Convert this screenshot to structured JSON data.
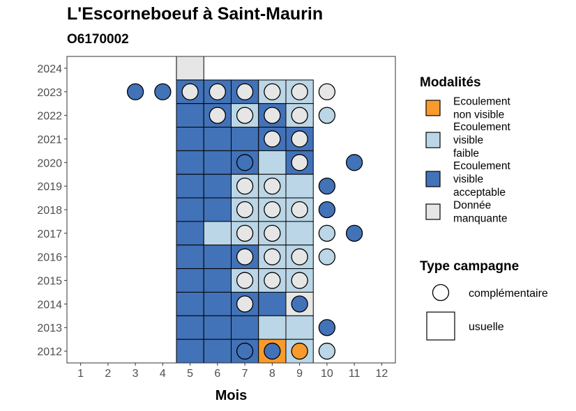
{
  "chart_data": {
    "type": "heatmap",
    "title": "L'Escorneboeuf à Saint-Maurin",
    "subtitle": "O6170002",
    "xlabel": "Mois",
    "ylabel": "",
    "x_ticks": [
      "1",
      "2",
      "3",
      "4",
      "5",
      "6",
      "7",
      "8",
      "9",
      "10",
      "11",
      "12"
    ],
    "y_ticks": [
      "2012",
      "2013",
      "2014",
      "2015",
      "2016",
      "2017",
      "2018",
      "2019",
      "2020",
      "2021",
      "2022",
      "2023",
      "2024"
    ],
    "xlim": [
      0.5,
      12.5
    ],
    "ylim": [
      2011.5,
      2024.5
    ],
    "grid": false,
    "legend_position": "right",
    "colors": {
      "nv": "#F99A2C",
      "vf": "#BBD6E6",
      "va": "#4272B8",
      "dm": "#E6E6E6"
    },
    "legend": {
      "modalites_title": "Modalités",
      "modalites": [
        {
          "key": "nv",
          "label_lines": [
            "Ecoulement",
            "non visible"
          ]
        },
        {
          "key": "vf",
          "label_lines": [
            "Ecoulement",
            "visible",
            "faible"
          ]
        },
        {
          "key": "va",
          "label_lines": [
            "Ecoulement",
            "visible",
            "acceptable"
          ]
        },
        {
          "key": "dm",
          "label_lines": [
            "Donnée",
            "manquante"
          ]
        }
      ],
      "type_title": "Type campagne",
      "types": [
        {
          "shape": "circle",
          "label": "complémentaire"
        },
        {
          "shape": "square",
          "label": "usuelle"
        }
      ]
    },
    "usuelle": [
      {
        "year": 2024,
        "month": 5,
        "m": "dm"
      },
      {
        "year": 2023,
        "month": 5,
        "m": "va"
      },
      {
        "year": 2023,
        "month": 6,
        "m": "va"
      },
      {
        "year": 2023,
        "month": 7,
        "m": "va"
      },
      {
        "year": 2023,
        "month": 8,
        "m": "vf"
      },
      {
        "year": 2023,
        "month": 9,
        "m": "vf"
      },
      {
        "year": 2022,
        "month": 5,
        "m": "va"
      },
      {
        "year": 2022,
        "month": 6,
        "m": "va"
      },
      {
        "year": 2022,
        "month": 7,
        "m": "vf"
      },
      {
        "year": 2022,
        "month": 8,
        "m": "va"
      },
      {
        "year": 2022,
        "month": 9,
        "m": "vf"
      },
      {
        "year": 2021,
        "month": 5,
        "m": "va"
      },
      {
        "year": 2021,
        "month": 6,
        "m": "va"
      },
      {
        "year": 2021,
        "month": 7,
        "m": "va"
      },
      {
        "year": 2021,
        "month": 8,
        "m": "va"
      },
      {
        "year": 2021,
        "month": 9,
        "m": "va"
      },
      {
        "year": 2020,
        "month": 5,
        "m": "va"
      },
      {
        "year": 2020,
        "month": 6,
        "m": "va"
      },
      {
        "year": 2020,
        "month": 7,
        "m": "va"
      },
      {
        "year": 2020,
        "month": 8,
        "m": "vf"
      },
      {
        "year": 2020,
        "month": 9,
        "m": "va"
      },
      {
        "year": 2019,
        "month": 5,
        "m": "va"
      },
      {
        "year": 2019,
        "month": 6,
        "m": "va"
      },
      {
        "year": 2019,
        "month": 7,
        "m": "vf"
      },
      {
        "year": 2019,
        "month": 8,
        "m": "vf"
      },
      {
        "year": 2019,
        "month": 9,
        "m": "vf"
      },
      {
        "year": 2018,
        "month": 5,
        "m": "va"
      },
      {
        "year": 2018,
        "month": 6,
        "m": "va"
      },
      {
        "year": 2018,
        "month": 7,
        "m": "vf"
      },
      {
        "year": 2018,
        "month": 8,
        "m": "vf"
      },
      {
        "year": 2018,
        "month": 9,
        "m": "vf"
      },
      {
        "year": 2017,
        "month": 5,
        "m": "va"
      },
      {
        "year": 2017,
        "month": 6,
        "m": "vf"
      },
      {
        "year": 2017,
        "month": 7,
        "m": "vf"
      },
      {
        "year": 2017,
        "month": 8,
        "m": "vf"
      },
      {
        "year": 2017,
        "month": 9,
        "m": "vf"
      },
      {
        "year": 2016,
        "month": 5,
        "m": "va"
      },
      {
        "year": 2016,
        "month": 6,
        "m": "va"
      },
      {
        "year": 2016,
        "month": 7,
        "m": "va"
      },
      {
        "year": 2016,
        "month": 8,
        "m": "vf"
      },
      {
        "year": 2016,
        "month": 9,
        "m": "vf"
      },
      {
        "year": 2015,
        "month": 5,
        "m": "va"
      },
      {
        "year": 2015,
        "month": 6,
        "m": "va"
      },
      {
        "year": 2015,
        "month": 7,
        "m": "vf"
      },
      {
        "year": 2015,
        "month": 8,
        "m": "vf"
      },
      {
        "year": 2015,
        "month": 9,
        "m": "vf"
      },
      {
        "year": 2014,
        "month": 5,
        "m": "va"
      },
      {
        "year": 2014,
        "month": 6,
        "m": "va"
      },
      {
        "year": 2014,
        "month": 7,
        "m": "va"
      },
      {
        "year": 2014,
        "month": 8,
        "m": "va"
      },
      {
        "year": 2014,
        "month": 9,
        "m": "dm"
      },
      {
        "year": 2013,
        "month": 5,
        "m": "va"
      },
      {
        "year": 2013,
        "month": 6,
        "m": "va"
      },
      {
        "year": 2013,
        "month": 7,
        "m": "va"
      },
      {
        "year": 2013,
        "month": 8,
        "m": "vf"
      },
      {
        "year": 2013,
        "month": 9,
        "m": "vf"
      },
      {
        "year": 2012,
        "month": 5,
        "m": "va"
      },
      {
        "year": 2012,
        "month": 6,
        "m": "va"
      },
      {
        "year": 2012,
        "month": 7,
        "m": "va"
      },
      {
        "year": 2012,
        "month": 8,
        "m": "nv"
      },
      {
        "year": 2012,
        "month": 9,
        "m": "vf"
      }
    ],
    "complementaire": [
      {
        "year": 2023,
        "month": 3,
        "m": "va"
      },
      {
        "year": 2023,
        "month": 4,
        "m": "va"
      },
      {
        "year": 2023,
        "month": 5,
        "m": "dm"
      },
      {
        "year": 2023,
        "month": 6,
        "m": "dm"
      },
      {
        "year": 2023,
        "month": 7,
        "m": "dm"
      },
      {
        "year": 2023,
        "month": 8,
        "m": "dm"
      },
      {
        "year": 2023,
        "month": 9,
        "m": "dm"
      },
      {
        "year": 2023,
        "month": 10,
        "m": "dm"
      },
      {
        "year": 2022,
        "month": 6,
        "m": "dm"
      },
      {
        "year": 2022,
        "month": 7,
        "m": "dm"
      },
      {
        "year": 2022,
        "month": 8,
        "m": "dm"
      },
      {
        "year": 2022,
        "month": 9,
        "m": "dm"
      },
      {
        "year": 2022,
        "month": 10,
        "m": "vf"
      },
      {
        "year": 2021,
        "month": 8,
        "m": "dm"
      },
      {
        "year": 2021,
        "month": 9,
        "m": "dm"
      },
      {
        "year": 2020,
        "month": 7,
        "m": "va"
      },
      {
        "year": 2020,
        "month": 9,
        "m": "dm"
      },
      {
        "year": 2020,
        "month": 11,
        "m": "va"
      },
      {
        "year": 2019,
        "month": 7,
        "m": "dm"
      },
      {
        "year": 2019,
        "month": 8,
        "m": "dm"
      },
      {
        "year": 2019,
        "month": 10,
        "m": "va"
      },
      {
        "year": 2018,
        "month": 7,
        "m": "dm"
      },
      {
        "year": 2018,
        "month": 8,
        "m": "dm"
      },
      {
        "year": 2018,
        "month": 9,
        "m": "dm"
      },
      {
        "year": 2018,
        "month": 10,
        "m": "va"
      },
      {
        "year": 2017,
        "month": 7,
        "m": "dm"
      },
      {
        "year": 2017,
        "month": 8,
        "m": "dm"
      },
      {
        "year": 2017,
        "month": 10,
        "m": "vf"
      },
      {
        "year": 2017,
        "month": 11,
        "m": "va"
      },
      {
        "year": 2016,
        "month": 7,
        "m": "dm"
      },
      {
        "year": 2016,
        "month": 8,
        "m": "dm"
      },
      {
        "year": 2016,
        "month": 9,
        "m": "dm"
      },
      {
        "year": 2016,
        "month": 10,
        "m": "vf"
      },
      {
        "year": 2015,
        "month": 7,
        "m": "dm"
      },
      {
        "year": 2015,
        "month": 8,
        "m": "dm"
      },
      {
        "year": 2015,
        "month": 9,
        "m": "dm"
      },
      {
        "year": 2014,
        "month": 7,
        "m": "dm"
      },
      {
        "year": 2014,
        "month": 9,
        "m": "va"
      },
      {
        "year": 2013,
        "month": 10,
        "m": "va"
      },
      {
        "year": 2012,
        "month": 7,
        "m": "va"
      },
      {
        "year": 2012,
        "month": 8,
        "m": "va"
      },
      {
        "year": 2012,
        "month": 9,
        "m": "nv"
      },
      {
        "year": 2012,
        "month": 10,
        "m": "vf"
      }
    ]
  }
}
